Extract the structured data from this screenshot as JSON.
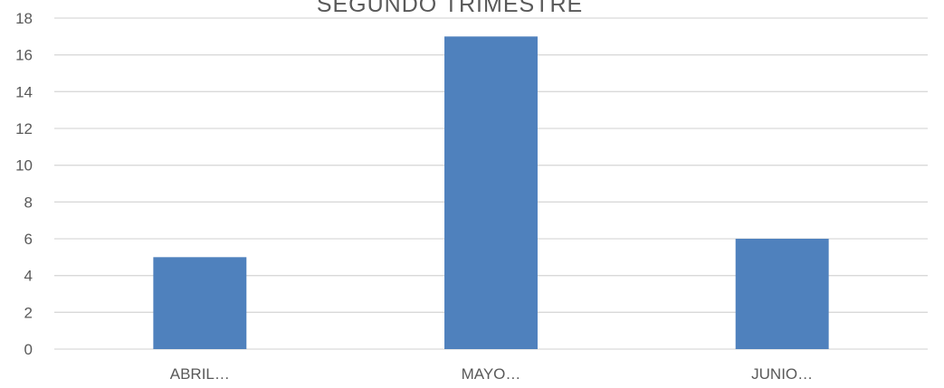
{
  "chart_data": {
    "type": "bar",
    "title": "SEGUNDO TRIMESTRE",
    "categories": [
      "ABRIL…",
      "MAYO…",
      "JUNIO…"
    ],
    "values": [
      5,
      17,
      6
    ],
    "ylim": [
      0,
      18
    ],
    "yticks": [
      0,
      2,
      4,
      6,
      8,
      10,
      12,
      14,
      16,
      18
    ],
    "grid": true,
    "legend": "none",
    "bar_color": "#4f81bd",
    "grid_color": "#d9d9d9",
    "text_color": "#595959"
  }
}
